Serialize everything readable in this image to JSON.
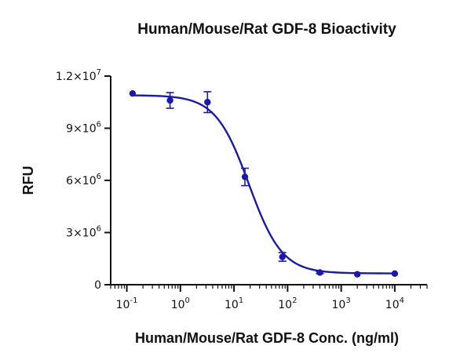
{
  "chart_data": {
    "type": "scatter",
    "title": "Human/Mouse/Rat GDF-8 Bioactivity",
    "xlabel": "Human/Mouse/Rat GDF-8 Conc. (ng/ml)",
    "ylabel": "RFU",
    "x_scale": "log",
    "xlim": [
      0.05,
      40000
    ],
    "ylim": [
      0,
      12000000
    ],
    "x_ticks": [
      {
        "value": 0.1,
        "base": "10",
        "exp": "-1"
      },
      {
        "value": 1,
        "base": "10",
        "exp": "0"
      },
      {
        "value": 10,
        "base": "10",
        "exp": "1"
      },
      {
        "value": 100,
        "base": "10",
        "exp": "2"
      },
      {
        "value": 1000,
        "base": "10",
        "exp": "3"
      },
      {
        "value": 10000,
        "base": "10",
        "exp": "4"
      }
    ],
    "y_ticks": [
      {
        "value": 0,
        "mantissa": "0",
        "exp": ""
      },
      {
        "value": 3000000,
        "mantissa": "3×10",
        "exp": "6"
      },
      {
        "value": 6000000,
        "mantissa": "6×10",
        "exp": "6"
      },
      {
        "value": 9000000,
        "mantissa": "9×10",
        "exp": "6"
      },
      {
        "value": 12000000,
        "mantissa": "1.2×10",
        "exp": "7"
      }
    ],
    "grid": false,
    "series": [
      {
        "color": "#1a1aa6",
        "points": [
          {
            "x": 0.128,
            "y": 11000000,
            "err": 0
          },
          {
            "x": 0.64,
            "y": 10600000,
            "err": 450000
          },
          {
            "x": 3.2,
            "y": 10500000,
            "err": 600000
          },
          {
            "x": 16,
            "y": 6200000,
            "err": 500000
          },
          {
            "x": 80,
            "y": 1600000,
            "err": 250000
          },
          {
            "x": 400,
            "y": 700000,
            "err": 60000
          },
          {
            "x": 2000,
            "y": 600000,
            "err": 0
          },
          {
            "x": 10000,
            "y": 640000,
            "err": 0
          }
        ],
        "fit": {
          "model": "4PL",
          "top": 10900000,
          "bottom": 650000,
          "ec50": 19,
          "hill": 1.4
        }
      }
    ]
  }
}
